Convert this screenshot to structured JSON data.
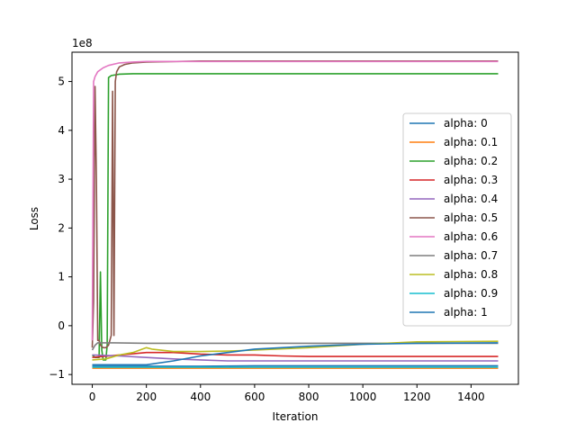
{
  "chart_data": {
    "type": "line",
    "title": "",
    "xlabel": "Iteration",
    "ylabel": "Loss",
    "offset_label": "1e8",
    "xlim": [
      -75,
      1575
    ],
    "ylim": [
      -1.2,
      5.6
    ],
    "xticks": [
      0,
      200,
      400,
      600,
      800,
      1000,
      1200,
      1400
    ],
    "yticks": [
      -1,
      0,
      1,
      2,
      3,
      4,
      5
    ],
    "grid": false,
    "legend_position": "center-right",
    "series": [
      {
        "name": "alpha: 0",
        "color": "#1f77b4",
        "x": [
          0,
          200,
          400,
          600,
          800,
          1000,
          1200,
          1500
        ],
        "y": [
          -0.83,
          -0.83,
          -0.83,
          -0.82,
          -0.82,
          -0.82,
          -0.82,
          -0.82
        ]
      },
      {
        "name": "alpha: 0.1",
        "color": "#ff7f0e",
        "x": [
          0,
          200,
          400,
          600,
          800,
          1000,
          1200,
          1500
        ],
        "y": [
          -0.87,
          -0.87,
          -0.87,
          -0.87,
          -0.87,
          -0.87,
          -0.87,
          -0.87
        ]
      },
      {
        "name": "alpha: 0.2",
        "color": "#2ca02c",
        "x": [
          0,
          10,
          25,
          30,
          35,
          40,
          50,
          55,
          60,
          70,
          100,
          150,
          200,
          400,
          800,
          1200,
          1500
        ],
        "y": [
          -0.6,
          -0.65,
          -0.65,
          1.1,
          -0.5,
          -0.7,
          -0.7,
          -0.4,
          5.08,
          5.12,
          5.15,
          5.16,
          5.16,
          5.16,
          5.16,
          5.16,
          5.16
        ]
      },
      {
        "name": "alpha: 0.3",
        "color": "#d62728",
        "x": [
          0,
          100,
          200,
          300,
          400,
          500,
          600,
          700,
          800,
          1000,
          1200,
          1500
        ],
        "y": [
          -0.65,
          -0.6,
          -0.55,
          -0.55,
          -0.58,
          -0.6,
          -0.6,
          -0.62,
          -0.63,
          -0.63,
          -0.63,
          -0.63
        ]
      },
      {
        "name": "alpha: 0.4",
        "color": "#9467bd",
        "x": [
          0,
          100,
          200,
          300,
          400,
          500,
          600,
          800,
          1000,
          1200,
          1500
        ],
        "y": [
          -0.6,
          -0.62,
          -0.65,
          -0.68,
          -0.7,
          -0.72,
          -0.72,
          -0.72,
          -0.72,
          -0.72,
          -0.72
        ]
      },
      {
        "name": "alpha: 0.5",
        "color": "#8c564b",
        "x": [
          0,
          5,
          10,
          15,
          20,
          25,
          30,
          40,
          50,
          60,
          70,
          75,
          80,
          85,
          90,
          100,
          120,
          150,
          200,
          400,
          800,
          1200,
          1500
        ],
        "y": [
          -0.45,
          0.5,
          4.9,
          3.0,
          -0.3,
          -0.3,
          -0.4,
          -0.45,
          -0.45,
          -0.4,
          -0.2,
          4.8,
          -0.2,
          5.0,
          5.2,
          5.3,
          5.35,
          5.38,
          5.4,
          5.42,
          5.42,
          5.42,
          5.42
        ]
      },
      {
        "name": "alpha: 0.6",
        "color": "#e377c2",
        "x": [
          0,
          5,
          10,
          20,
          40,
          60,
          100,
          150,
          200,
          400,
          800,
          1200,
          1500
        ],
        "y": [
          -0.3,
          5.0,
          5.1,
          5.2,
          5.28,
          5.33,
          5.38,
          5.4,
          5.41,
          5.41,
          5.41,
          5.41,
          5.41
        ]
      },
      {
        "name": "alpha: 0.7",
        "color": "#7f7f7f",
        "x": [
          0,
          10,
          20,
          40,
          80,
          200,
          400,
          800,
          1000,
          1200,
          1500
        ],
        "y": [
          -0.5,
          -0.4,
          -0.35,
          -0.35,
          -0.35,
          -0.36,
          -0.36,
          -0.36,
          -0.36,
          -0.36,
          -0.36
        ]
      },
      {
        "name": "alpha: 0.8",
        "color": "#bcbd22",
        "x": [
          0,
          50,
          100,
          150,
          200,
          220,
          300,
          400,
          500,
          600,
          800,
          1000,
          1200,
          1500
        ],
        "y": [
          -0.7,
          -0.68,
          -0.6,
          -0.55,
          -0.45,
          -0.48,
          -0.53,
          -0.53,
          -0.52,
          -0.5,
          -0.45,
          -0.38,
          -0.33,
          -0.32
        ]
      },
      {
        "name": "alpha: 0.9",
        "color": "#17becf",
        "x": [
          0,
          200,
          400,
          600,
          800,
          1000,
          1200,
          1500
        ],
        "y": [
          -0.85,
          -0.85,
          -0.85,
          -0.85,
          -0.85,
          -0.85,
          -0.85,
          -0.85
        ]
      },
      {
        "name": "alpha: 1",
        "color": "#1f77b4",
        "x": [
          0,
          200,
          300,
          400,
          500,
          600,
          700,
          800,
          900,
          1000,
          1200,
          1500
        ],
        "y": [
          -0.8,
          -0.8,
          -0.72,
          -0.62,
          -0.55,
          -0.48,
          -0.45,
          -0.42,
          -0.4,
          -0.38,
          -0.36,
          -0.35
        ]
      }
    ]
  }
}
